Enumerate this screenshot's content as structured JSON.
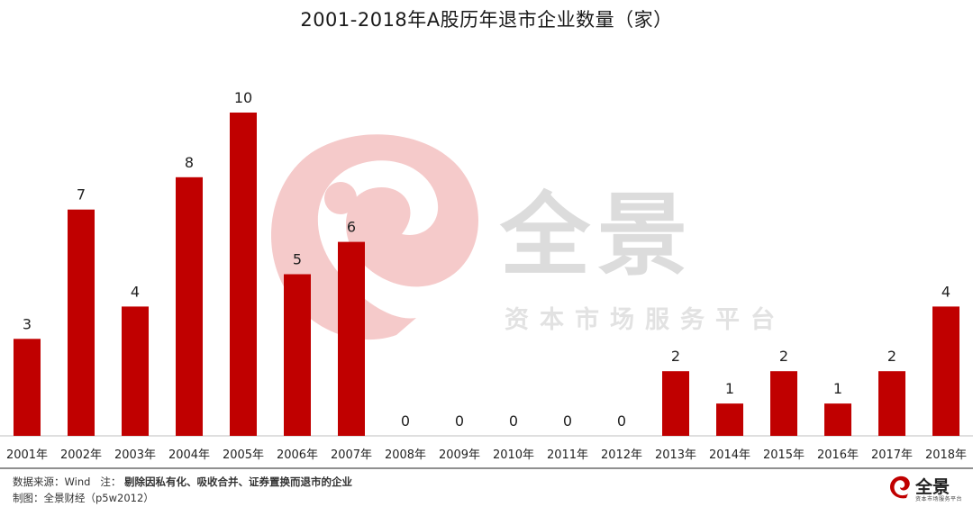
{
  "page": {
    "background_color": "#ffffff"
  },
  "watermark": {
    "name": "全景",
    "tagline": "资本市场服务平台",
    "swirl_color": "#f5caca",
    "text_color": "#dcdcdc"
  },
  "footer": {
    "source_label": "数据来源：Wind",
    "note_label": "注：",
    "note_text": "剔除因私有化、吸收合并、证券置换而退市的企业",
    "maker_label": "制图：全景财经（p5w2012）"
  },
  "logo": {
    "name": "全景",
    "sub": "资本市场服务平台",
    "color": "#c00000"
  },
  "chart_data": {
    "type": "bar",
    "title": "2001-2018年A股历年退市企业数量（家）",
    "xlabel": "",
    "ylabel": "",
    "categories": [
      "2001年",
      "2002年",
      "2003年",
      "2004年",
      "2005年",
      "2006年",
      "2007年",
      "2008年",
      "2009年",
      "2010年",
      "2011年",
      "2012年",
      "2013年",
      "2014年",
      "2015年",
      "2016年",
      "2017年",
      "2018年"
    ],
    "values": [
      3,
      7,
      4,
      8,
      10,
      5,
      6,
      0,
      0,
      0,
      0,
      0,
      2,
      1,
      2,
      1,
      2,
      4
    ],
    "ylim": [
      0,
      10
    ],
    "grid": false,
    "legend": "none",
    "bar_color": "#c00000",
    "data_labels": true
  }
}
